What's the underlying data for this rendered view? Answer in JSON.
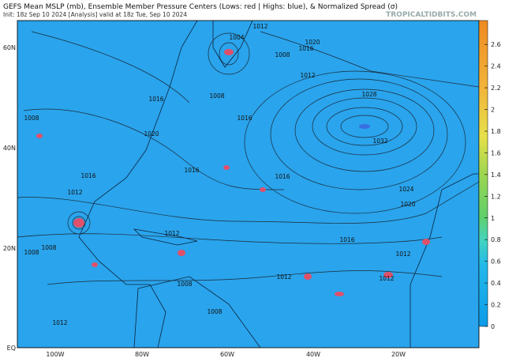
{
  "header": {
    "title": "GEFS Mean MSLP (mb), Ensemble Member Pressure Centers (Lows: red | Highs: blue), & Normalized Spread (σ)",
    "subtitle": "Init: 18z Sep 10 2024   [Analysis]   valid at 18z Tue, Sep 10 2024",
    "brand": "TROPICALTIDBITS.COM"
  },
  "latitude_labels": [
    "60N",
    "40N",
    "20N",
    "EQ"
  ],
  "longitude_labels": [
    "100W",
    "80W",
    "60W",
    "40W",
    "20W"
  ],
  "isobar_labels": [
    "1004",
    "1012",
    "1020",
    "1016",
    "1008",
    "1012",
    "1016",
    "1008",
    "1016",
    "1020",
    "1028",
    "1032",
    "1008",
    "1016",
    "1012",
    "1016",
    "1016",
    "1024",
    "1020",
    "1012",
    "1008",
    "1012",
    "1016",
    "1012",
    "1012",
    "1008",
    "1008",
    "1012",
    "1008"
  ],
  "colorbar": {
    "lim": [
      0,
      2.82
    ],
    "ticks": [
      0,
      0.2,
      0.4,
      0.6,
      0.8,
      1,
      1.2,
      1.4,
      1.6,
      1.8,
      2,
      2.2,
      2.4,
      2.6
    ]
  }
}
